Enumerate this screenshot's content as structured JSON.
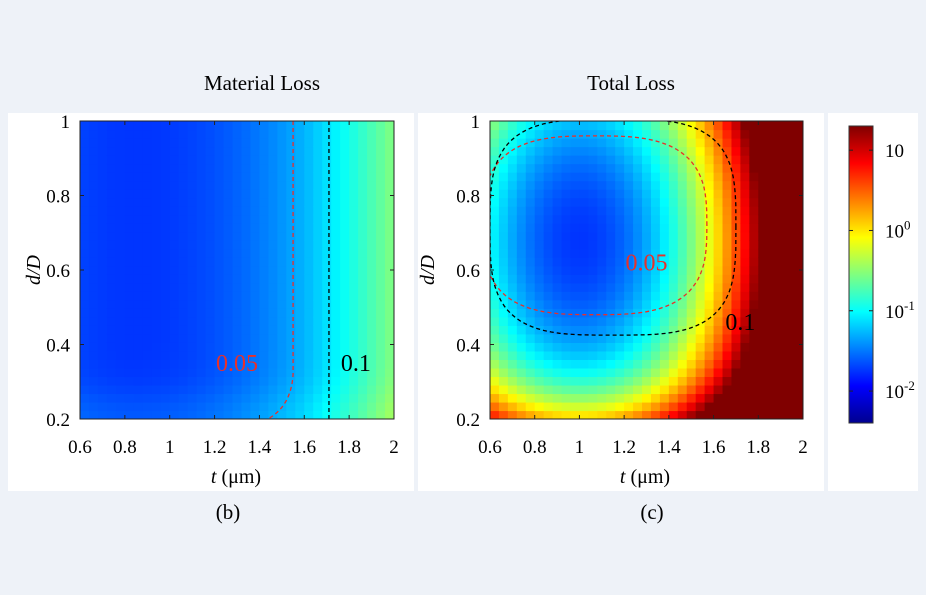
{
  "chart_data": [
    {
      "type": "heatmap",
      "panel_label": "(b)",
      "title": "Material Loss",
      "xlabel_var": "t",
      "xlabel_unit": " (μm)",
      "ylabel": "d/D",
      "xlim": [
        0.6,
        2
      ],
      "ylim": [
        0.2,
        1
      ],
      "x_ticks": [
        "0.6",
        "0.8",
        "1",
        "1.2",
        "1.4",
        "1.6",
        "1.8",
        "2"
      ],
      "y_ticks": [
        "0.2",
        "0.4",
        "0.6",
        "0.8",
        "1"
      ],
      "color_scale": "log",
      "contours": [
        {
          "level": 0.05,
          "label": "0.05",
          "color": "#e8302a",
          "label_at": [
            1.3,
            0.35
          ]
        },
        {
          "level": 0.1,
          "label": "0.1",
          "color": "#000000",
          "label_at": [
            1.83,
            0.35
          ]
        }
      ]
    },
    {
      "type": "heatmap",
      "panel_label": "(c)",
      "title": "Total Loss",
      "xlabel_var": "t",
      "xlabel_unit": " (μm)",
      "ylabel": "d/D",
      "xlim": [
        0.6,
        2
      ],
      "ylim": [
        0.2,
        1
      ],
      "x_ticks": [
        "0.6",
        "0.8",
        "1",
        "1.2",
        "1.4",
        "1.6",
        "1.8",
        "2"
      ],
      "y_ticks": [
        "0.2",
        "0.4",
        "0.6",
        "0.8",
        "1"
      ],
      "color_scale": "log",
      "contours": [
        {
          "level": 0.05,
          "label": "0.05",
          "color": "#e8302a",
          "label_at": [
            1.3,
            0.62
          ]
        },
        {
          "level": 0.1,
          "label": "0.1",
          "color": "#000000",
          "label_at": [
            1.72,
            0.46
          ]
        }
      ]
    }
  ],
  "colorbar": {
    "scale": "log",
    "range": [
      0.004,
      20
    ],
    "ticks": [
      {
        "value": 10,
        "label": "10"
      },
      {
        "value": 1,
        "base": "10",
        "exp": "0"
      },
      {
        "value": 0.1,
        "base": "10",
        "exp": "-1"
      },
      {
        "value": 0.01,
        "base": "10",
        "exp": "-2"
      }
    ]
  }
}
